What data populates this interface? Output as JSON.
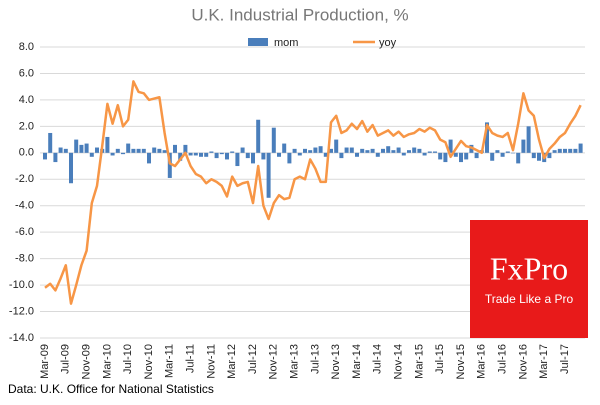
{
  "chart_data": {
    "type": "bar_line",
    "title": "U.K. Industrial Production, %",
    "source": "Data: U.K. Office for National Statistics",
    "categories": [
      "Mar-09",
      null,
      null,
      null,
      "Jul-09",
      null,
      null,
      null,
      "Nov-09",
      null,
      null,
      null,
      "Mar-10",
      null,
      null,
      null,
      "Jul-10",
      null,
      null,
      null,
      "Nov-10",
      null,
      null,
      null,
      "Mar-11",
      null,
      null,
      null,
      "Jul-11",
      null,
      null,
      null,
      "Nov-11",
      null,
      null,
      null,
      "Mar-12",
      null,
      null,
      null,
      "Jul-12",
      null,
      null,
      null,
      "Nov-12",
      null,
      null,
      null,
      "Mar-13",
      null,
      null,
      null,
      "Jul-13",
      null,
      null,
      null,
      "Nov-13",
      null,
      null,
      null,
      "Mar-14",
      null,
      null,
      null,
      "Jul-14",
      null,
      null,
      null,
      "Nov-14",
      null,
      null,
      null,
      "Mar-15",
      null,
      null,
      null,
      "Jul-15",
      null,
      null,
      null,
      "Nov-15",
      null,
      null,
      null,
      "Mar-16",
      null,
      null,
      null,
      "Jul-16",
      null,
      null,
      null,
      "Nov-16",
      null,
      null,
      null,
      "Mar-17",
      null,
      null,
      null,
      "Jul-17",
      null,
      null,
      null
    ],
    "series": [
      {
        "name": "mom",
        "type": "bar",
        "color": "#4a7ebb",
        "values": [
          -0.5,
          1.5,
          -0.7,
          0.4,
          0.3,
          -2.3,
          1.0,
          0.6,
          0.7,
          -0.3,
          0.4,
          0.3,
          1.2,
          -0.2,
          0.3,
          -0.1,
          0.7,
          0.3,
          0.3,
          0.3,
          -0.8,
          0.4,
          0.3,
          0.2,
          -1.9,
          0.6,
          -0.6,
          0.6,
          -0.2,
          -0.2,
          -0.3,
          -0.3,
          0.1,
          -0.4,
          -0.1,
          -0.5,
          0.1,
          -1.0,
          0.4,
          -0.4,
          -0.8,
          2.5,
          -0.5,
          -3.4,
          1.9,
          -0.3,
          0.7,
          -0.8,
          0.3,
          -0.2,
          0.3,
          0.2,
          0.4,
          0.5,
          -0.3,
          0.3,
          1.0,
          -0.4,
          0.4,
          0.4,
          -0.3,
          0.3,
          0.2,
          0.3,
          -0.3,
          0.3,
          0.5,
          0.2,
          0.4,
          -0.2,
          0.2,
          0.4,
          0.3,
          -0.2,
          0.1,
          0.1,
          -0.5,
          -0.7,
          1.0,
          -0.3,
          -0.7,
          -0.5,
          0.6,
          -0.4,
          0.2,
          2.3,
          -0.6,
          0.2,
          -0.3,
          0.1,
          0.0,
          -0.8,
          1.0,
          2.0,
          -0.4,
          -0.6,
          -0.7,
          -0.4,
          0.2,
          0.3,
          0.3,
          0.3,
          0.3,
          0.7
        ]
      },
      {
        "name": "yoy",
        "type": "line",
        "color": "#f79646",
        "values": [
          -10.2,
          -9.9,
          -10.4,
          -9.5,
          -8.5,
          -11.4,
          -10.0,
          -8.5,
          -7.4,
          -3.8,
          -2.5,
          0.5,
          3.7,
          2.2,
          3.6,
          2.0,
          2.5,
          5.4,
          4.6,
          4.5,
          4.0,
          4.1,
          4.2,
          1.5,
          -0.8,
          -1.0,
          -0.5,
          0.0,
          -1.0,
          -1.6,
          -1.8,
          -2.3,
          -2.0,
          -2.2,
          -2.5,
          -3.3,
          -1.8,
          -2.5,
          -2.3,
          -2.2,
          -3.8,
          -1.0,
          -4.0,
          -5.0,
          -3.8,
          -3.2,
          -3.5,
          -3.4,
          -2.0,
          -1.8,
          -2.0,
          -0.5,
          -1.2,
          -2.2,
          -2.2,
          2.3,
          2.8,
          1.5,
          1.7,
          2.2,
          1.8,
          2.4,
          1.6,
          2.1,
          1.3,
          1.5,
          1.7,
          1.3,
          1.6,
          1.2,
          1.4,
          1.5,
          1.8,
          1.6,
          1.9,
          1.7,
          1.0,
          0.8,
          -0.3,
          0.3,
          0.9,
          0.5,
          0.4,
          0.2,
          0.0,
          2.1,
          1.5,
          1.3,
          1.2,
          1.5,
          0.2,
          2.2,
          4.5,
          3.2,
          2.8,
          1.0,
          -0.4,
          0.3,
          0.7,
          1.2,
          1.5,
          2.2,
          2.8,
          3.6
        ]
      }
    ],
    "ylim": [
      -14,
      8
    ],
    "yticks": [
      {
        "value": -14,
        "label": "-14.0"
      },
      {
        "value": -12,
        "label": "-12.0"
      },
      {
        "value": -10,
        "label": "-10.0"
      },
      {
        "value": -8,
        "label": "-8.0"
      },
      {
        "value": -6,
        "label": "-6.0"
      },
      {
        "value": -4,
        "label": "-4.0"
      },
      {
        "value": -2,
        "label": "-2.0"
      },
      {
        "value": 0,
        "label": "0.0"
      },
      {
        "value": 2,
        "label": "2.0"
      },
      {
        "value": 4,
        "label": "4.0"
      },
      {
        "value": 6,
        "label": "6.0"
      },
      {
        "value": 8,
        "label": "8.0"
      }
    ],
    "grid": true,
    "legend": "top"
  },
  "logo": {
    "brand": "FxPro",
    "tagline": "Trade Like a Pro"
  }
}
